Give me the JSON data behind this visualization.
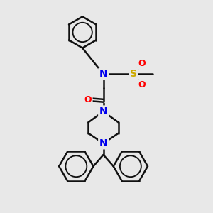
{
  "bg_color": "#e8e8e8",
  "atom_colors": {
    "N": "#0000ee",
    "O": "#ff0000",
    "S": "#ccaa00"
  },
  "bond_color": "#111111",
  "bond_width": 1.8,
  "figsize": [
    3.0,
    3.0
  ],
  "dpi": 100,
  "xlim": [
    0,
    10
  ],
  "ylim": [
    0,
    10
  ]
}
